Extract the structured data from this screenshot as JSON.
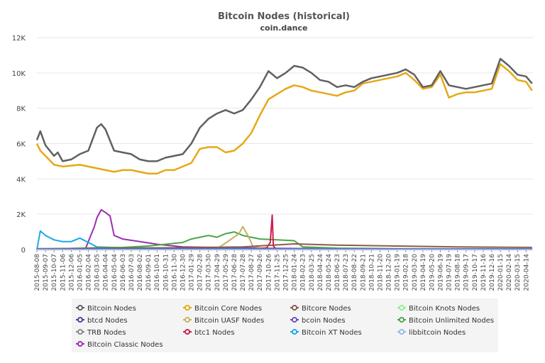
{
  "chart_data": {
    "type": "line",
    "title": "Bitcoin Nodes (historical)",
    "subtitle": "coin.dance",
    "xlabel": "",
    "ylabel": "",
    "ylim": [
      0,
      12000
    ],
    "yticks": [
      "0",
      "2K",
      "4K",
      "6K",
      "8K",
      "10K",
      "12K"
    ],
    "grid": true,
    "legend_position": "bottom",
    "x_tick_labels": [
      "2015-08-08",
      "2015-09-07",
      "2015-10-07",
      "2015-11-06",
      "2015-12-06",
      "2016-01-05",
      "2016-02-04",
      "2016-03-05",
      "2016-04-04",
      "2016-05-04",
      "2016-06-03",
      "2016-07-03",
      "2016-08-02",
      "2016-09-01",
      "2016-10-01",
      "2016-10-31",
      "2016-11-30",
      "2016-12-30",
      "2017-01-29",
      "2017-02-28",
      "2017-03-30",
      "2017-04-29",
      "2017-05-29",
      "2017-06-28",
      "2017-07-28",
      "2017-08-27",
      "2017-09-26",
      "2017-10-26",
      "2017-11-25",
      "2017-12-25",
      "2018-01-24",
      "2018-02-23",
      "2018-03-25",
      "2018-04-24",
      "2018-05-24",
      "2018-06-23",
      "2018-07-23",
      "2018-08-22",
      "2018-09-21",
      "2018-10-21",
      "2018-11-20",
      "2018-12-20",
      "2019-01-19",
      "2019-02-18",
      "2019-03-20",
      "2019-04-19",
      "2019-05-20",
      "2019-06-19",
      "2019-07-19",
      "2019-08-18",
      "2019-09-17",
      "2019-10-17",
      "2019-11-16",
      "2019-12-16",
      "2020-01-15",
      "2020-02-14",
      "2020-03-15",
      "2020-04-14"
    ],
    "series": [
      {
        "name": "Bitcoin Nodes",
        "color": "#606060",
        "points": [
          [
            "2015-08-08",
            6200
          ],
          [
            "2015-08-20",
            6700
          ],
          [
            "2015-09-07",
            5900
          ],
          [
            "2015-10-07",
            5300
          ],
          [
            "2015-10-20",
            5500
          ],
          [
            "2015-11-06",
            5000
          ],
          [
            "2015-12-06",
            5100
          ],
          [
            "2016-01-05",
            5400
          ],
          [
            "2016-02-04",
            5600
          ],
          [
            "2016-03-05",
            6900
          ],
          [
            "2016-03-20",
            7100
          ],
          [
            "2016-04-04",
            6800
          ],
          [
            "2016-05-04",
            5600
          ],
          [
            "2016-06-03",
            5500
          ],
          [
            "2016-07-03",
            5400
          ],
          [
            "2016-08-02",
            5100
          ],
          [
            "2016-09-01",
            5000
          ],
          [
            "2016-10-01",
            5000
          ],
          [
            "2016-10-31",
            5200
          ],
          [
            "2016-11-30",
            5300
          ],
          [
            "2016-12-30",
            5400
          ],
          [
            "2017-01-29",
            6000
          ],
          [
            "2017-02-28",
            6900
          ],
          [
            "2017-03-30",
            7400
          ],
          [
            "2017-04-29",
            7700
          ],
          [
            "2017-05-29",
            7900
          ],
          [
            "2017-06-28",
            7700
          ],
          [
            "2017-07-28",
            7900
          ],
          [
            "2017-08-27",
            8500
          ],
          [
            "2017-09-26",
            9200
          ],
          [
            "2017-10-26",
            10100
          ],
          [
            "2017-11-25",
            9700
          ],
          [
            "2017-12-25",
            10000
          ],
          [
            "2018-01-24",
            10400
          ],
          [
            "2018-02-23",
            10300
          ],
          [
            "2018-03-25",
            10000
          ],
          [
            "2018-04-24",
            9600
          ],
          [
            "2018-05-24",
            9500
          ],
          [
            "2018-06-23",
            9200
          ],
          [
            "2018-07-23",
            9300
          ],
          [
            "2018-08-22",
            9200
          ],
          [
            "2018-09-21",
            9500
          ],
          [
            "2018-10-21",
            9700
          ],
          [
            "2018-11-20",
            9800
          ],
          [
            "2018-12-20",
            9900
          ],
          [
            "2019-01-19",
            10000
          ],
          [
            "2019-02-18",
            10200
          ],
          [
            "2019-03-20",
            9900
          ],
          [
            "2019-04-19",
            9200
          ],
          [
            "2019-05-20",
            9300
          ],
          [
            "2019-06-19",
            10100
          ],
          [
            "2019-07-19",
            9300
          ],
          [
            "2019-08-18",
            9200
          ],
          [
            "2019-09-17",
            9100
          ],
          [
            "2019-10-17",
            9200
          ],
          [
            "2019-11-16",
            9300
          ],
          [
            "2019-12-16",
            9400
          ],
          [
            "2020-01-15",
            10800
          ],
          [
            "2020-02-14",
            10400
          ],
          [
            "2020-03-15",
            9900
          ],
          [
            "2020-04-14",
            9800
          ],
          [
            "2020-05-05",
            9400
          ]
        ]
      },
      {
        "name": "Bitcoin Core Nodes",
        "color": "#e6a817",
        "points": [
          [
            "2015-08-08",
            6000
          ],
          [
            "2015-08-20",
            5600
          ],
          [
            "2015-09-07",
            5300
          ],
          [
            "2015-10-07",
            4800
          ],
          [
            "2015-11-06",
            4700
          ],
          [
            "2015-12-06",
            4750
          ],
          [
            "2016-01-05",
            4800
          ],
          [
            "2016-02-04",
            4700
          ],
          [
            "2016-03-05",
            4600
          ],
          [
            "2016-04-04",
            4500
          ],
          [
            "2016-05-04",
            4400
          ],
          [
            "2016-06-03",
            4500
          ],
          [
            "2016-07-03",
            4500
          ],
          [
            "2016-08-02",
            4400
          ],
          [
            "2016-09-01",
            4300
          ],
          [
            "2016-10-01",
            4300
          ],
          [
            "2016-10-31",
            4500
          ],
          [
            "2016-11-30",
            4500
          ],
          [
            "2016-12-30",
            4700
          ],
          [
            "2017-01-29",
            4900
          ],
          [
            "2017-02-28",
            5700
          ],
          [
            "2017-03-30",
            5800
          ],
          [
            "2017-04-29",
            5800
          ],
          [
            "2017-05-29",
            5500
          ],
          [
            "2017-06-28",
            5600
          ],
          [
            "2017-07-28",
            6000
          ],
          [
            "2017-08-27",
            6600
          ],
          [
            "2017-09-26",
            7600
          ],
          [
            "2017-10-26",
            8500
          ],
          [
            "2017-11-25",
            8800
          ],
          [
            "2017-12-25",
            9100
          ],
          [
            "2018-01-24",
            9300
          ],
          [
            "2018-02-23",
            9200
          ],
          [
            "2018-03-25",
            9000
          ],
          [
            "2018-04-24",
            8900
          ],
          [
            "2018-05-24",
            8800
          ],
          [
            "2018-06-23",
            8700
          ],
          [
            "2018-07-23",
            8900
          ],
          [
            "2018-08-22",
            9000
          ],
          [
            "2018-09-21",
            9400
          ],
          [
            "2018-10-21",
            9500
          ],
          [
            "2018-11-20",
            9600
          ],
          [
            "2018-12-20",
            9700
          ],
          [
            "2019-01-19",
            9800
          ],
          [
            "2019-02-18",
            10000
          ],
          [
            "2019-03-20",
            9600
          ],
          [
            "2019-04-19",
            9100
          ],
          [
            "2019-05-20",
            9200
          ],
          [
            "2019-06-19",
            9900
          ],
          [
            "2019-07-19",
            8600
          ],
          [
            "2019-08-18",
            8800
          ],
          [
            "2019-09-17",
            8900
          ],
          [
            "2019-10-17",
            8900
          ],
          [
            "2019-11-16",
            9000
          ],
          [
            "2019-12-16",
            9100
          ],
          [
            "2020-01-15",
            10500
          ],
          [
            "2020-02-14",
            10100
          ],
          [
            "2020-03-15",
            9600
          ],
          [
            "2020-04-14",
            9500
          ],
          [
            "2020-05-05",
            9000
          ]
        ]
      },
      {
        "name": "Bitcore Nodes",
        "color": "#8d5a4a",
        "points": [
          [
            "2015-08-08",
            50
          ],
          [
            "2016-08-02",
            80
          ],
          [
            "2017-07-28",
            150
          ],
          [
            "2018-01-24",
            320
          ],
          [
            "2018-06-23",
            250
          ],
          [
            "2019-01-19",
            200
          ],
          [
            "2019-08-18",
            150
          ],
          [
            "2020-05-05",
            120
          ]
        ]
      },
      {
        "name": "Bitcoin Knots Nodes",
        "color": "#90ee90",
        "points": [
          [
            "2015-08-08",
            10
          ],
          [
            "2017-01-29",
            20
          ],
          [
            "2018-01-24",
            40
          ],
          [
            "2019-01-19",
            40
          ],
          [
            "2020-05-05",
            50
          ]
        ]
      },
      {
        "name": "btcd Nodes",
        "color": "#3a4a9a",
        "points": [
          [
            "2015-08-08",
            30
          ],
          [
            "2016-08-02",
            40
          ],
          [
            "2017-08-27",
            50
          ],
          [
            "2018-08-22",
            40
          ],
          [
            "2020-05-05",
            40
          ]
        ]
      },
      {
        "name": "Bitcoin UASF Nodes",
        "color": "#c8b060",
        "points": [
          [
            "2017-03-30",
            0
          ],
          [
            "2017-04-29",
            50
          ],
          [
            "2017-06-01",
            400
          ],
          [
            "2017-07-15",
            900
          ],
          [
            "2017-07-28",
            1300
          ],
          [
            "2017-08-15",
            800
          ],
          [
            "2017-09-01",
            200
          ],
          [
            "2017-10-01",
            80
          ],
          [
            "2018-01-24",
            20
          ],
          [
            "2018-06-23",
            0
          ]
        ]
      },
      {
        "name": "bcoin Nodes",
        "color": "#7050c0",
        "points": [
          [
            "2015-08-08",
            10
          ],
          [
            "2017-01-29",
            20
          ],
          [
            "2018-06-23",
            30
          ],
          [
            "2020-05-05",
            30
          ]
        ]
      },
      {
        "name": "Bitcoin Unlimited Nodes",
        "color": "#4aa64a",
        "points": [
          [
            "2015-08-08",
            20
          ],
          [
            "2016-03-05",
            100
          ],
          [
            "2016-06-03",
            120
          ],
          [
            "2016-09-01",
            200
          ],
          [
            "2016-10-31",
            300
          ],
          [
            "2016-12-30",
            400
          ],
          [
            "2017-01-29",
            600
          ],
          [
            "2017-03-30",
            800
          ],
          [
            "2017-04-29",
            700
          ],
          [
            "2017-05-29",
            900
          ],
          [
            "2017-06-28",
            1000
          ],
          [
            "2017-07-28",
            800
          ],
          [
            "2017-09-26",
            600
          ],
          [
            "2017-11-25",
            550
          ],
          [
            "2018-01-24",
            500
          ],
          [
            "2018-02-23",
            150
          ],
          [
            "2018-06-23",
            80
          ],
          [
            "2019-01-19",
            50
          ],
          [
            "2020-05-05",
            30
          ]
        ]
      },
      {
        "name": "TRB Nodes",
        "color": "#888888",
        "points": [
          [
            "2015-08-08",
            5
          ],
          [
            "2020-05-05",
            5
          ]
        ]
      },
      {
        "name": "btc1 Nodes",
        "color": "#cc1f4a",
        "points": [
          [
            "2017-09-01",
            0
          ],
          [
            "2017-10-20",
            100
          ],
          [
            "2017-11-01",
            400
          ],
          [
            "2017-11-08",
            1950
          ],
          [
            "2017-11-12",
            200
          ],
          [
            "2017-11-20",
            50
          ],
          [
            "2018-01-24",
            20
          ],
          [
            "2018-06-23",
            0
          ]
        ]
      },
      {
        "name": "Bitcoin XT Nodes",
        "color": "#1ca8e6",
        "points": [
          [
            "2015-08-08",
            0
          ],
          [
            "2015-08-20",
            1050
          ],
          [
            "2015-09-07",
            800
          ],
          [
            "2015-10-07",
            550
          ],
          [
            "2015-11-06",
            450
          ],
          [
            "2015-12-06",
            450
          ],
          [
            "2016-01-05",
            650
          ],
          [
            "2016-02-04",
            400
          ],
          [
            "2016-03-05",
            150
          ],
          [
            "2016-06-03",
            100
          ],
          [
            "2017-01-29",
            80
          ],
          [
            "2018-01-24",
            40
          ],
          [
            "2020-05-05",
            20
          ]
        ]
      },
      {
        "name": "libbitcoin Nodes",
        "color": "#99b8e8",
        "points": [
          [
            "2015-08-08",
            5
          ],
          [
            "2020-05-05",
            5
          ]
        ]
      },
      {
        "name": "Bitcoin Classic Nodes",
        "color": "#9b2fb0",
        "points": [
          [
            "2015-08-08",
            0
          ],
          [
            "2016-01-25",
            50
          ],
          [
            "2016-02-10",
            700
          ],
          [
            "2016-02-25",
            1300
          ],
          [
            "2016-03-05",
            1800
          ],
          [
            "2016-03-20",
            2250
          ],
          [
            "2016-04-04",
            2100
          ],
          [
            "2016-04-20",
            1900
          ],
          [
            "2016-05-04",
            800
          ],
          [
            "2016-06-03",
            600
          ],
          [
            "2016-08-02",
            450
          ],
          [
            "2016-10-01",
            300
          ],
          [
            "2016-12-30",
            150
          ],
          [
            "2017-06-28",
            100
          ],
          [
            "2018-01-24",
            60
          ],
          [
            "2019-01-19",
            30
          ],
          [
            "2020-05-05",
            20
          ]
        ]
      }
    ]
  }
}
